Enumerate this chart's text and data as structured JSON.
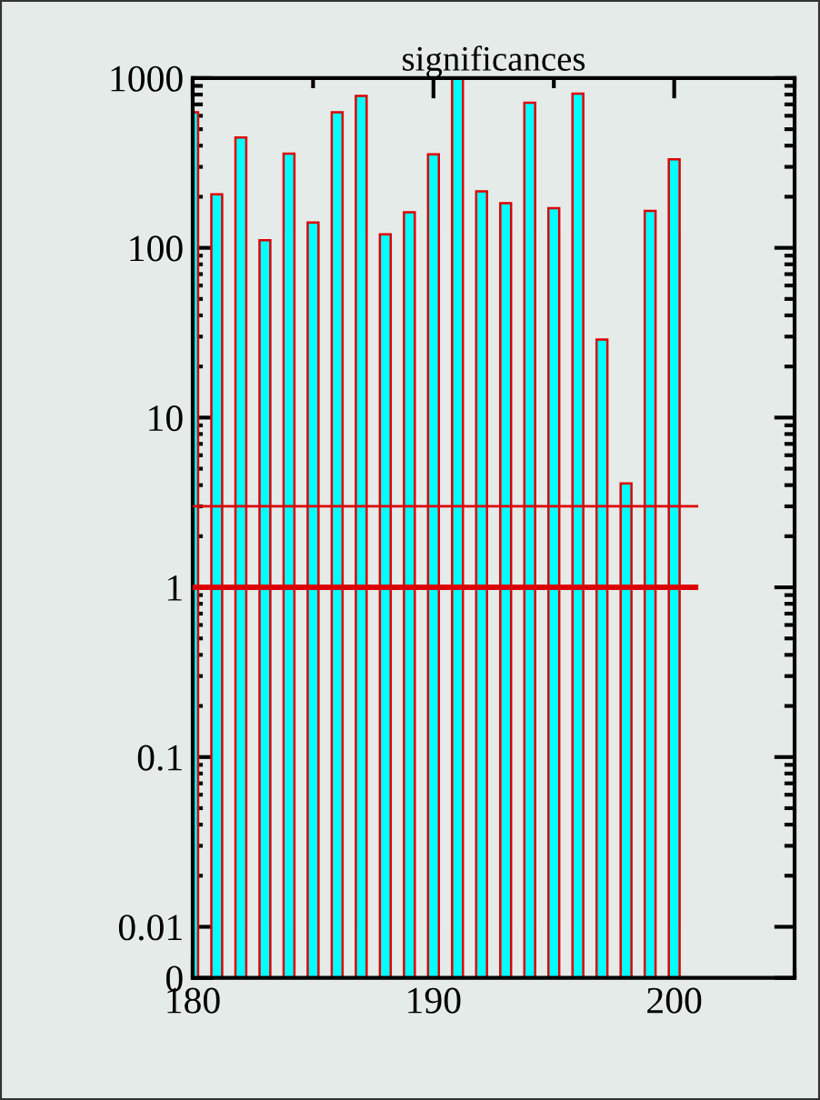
{
  "chart_data": {
    "type": "bar",
    "title": "significances",
    "x": [
      180,
      181,
      182,
      183,
      184,
      185,
      186,
      187,
      188,
      189,
      190,
      191,
      192,
      193,
      194,
      195,
      196,
      197,
      198,
      199,
      200
    ],
    "values": [
      630,
      207,
      447,
      111,
      359,
      141,
      630,
      785,
      120,
      162,
      356,
      1000,
      215,
      183,
      716,
      171,
      811,
      28.8,
      4.1,
      165,
      332
    ],
    "color": "#00ffff",
    "log": true,
    "xlim": [
      180,
      205
    ],
    "xticks": [
      180,
      190,
      200
    ],
    "ylim": [
      0.005,
      1000
    ],
    "yticks": [
      {
        "value": 0.005,
        "label": "0"
      },
      0.01,
      0.1,
      1,
      10,
      100,
      1000
    ],
    "ref_lines": [
      {
        "axis": "y",
        "value": 3,
        "color": "#dd0000"
      },
      {
        "axis": "y",
        "value": 1,
        "color": "#dd0000"
      }
    ],
    "grid": false,
    "legend": false
  }
}
